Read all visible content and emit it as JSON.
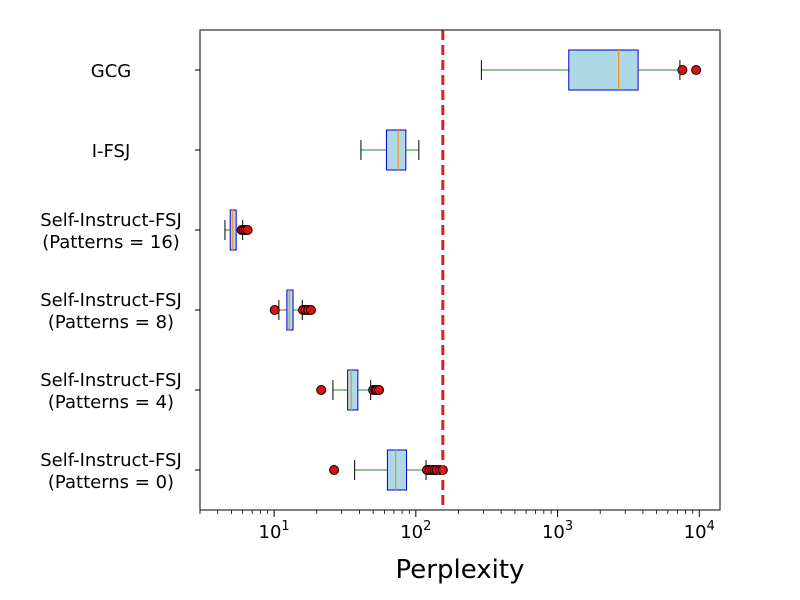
{
  "chart_data": {
    "type": "boxplot",
    "orientation": "horizontal",
    "xscale": "log",
    "xlim": [
      3,
      14000
    ],
    "xlabel": "Perplexity",
    "ylabel": "",
    "title": "",
    "x_ticks": [
      {
        "value": 10,
        "base": "10",
        "exp": "1"
      },
      {
        "value": 100,
        "base": "10",
        "exp": "2"
      },
      {
        "value": 1000,
        "base": "10",
        "exp": "3"
      },
      {
        "value": 10000,
        "base": "10",
        "exp": "4"
      }
    ],
    "threshold": {
      "value": 155,
      "color": "#dd2222",
      "style": "dashed"
    },
    "colors": {
      "box_fill": "#add8e6",
      "box_edge": "#0000cc",
      "whisker": "#228b22",
      "median": "#ff8c1a",
      "outlier": "#dd1111"
    },
    "series": [
      {
        "name": "GCG",
        "label_lines": [
          "GCG"
        ],
        "whisker_low": 290,
        "q1": 1200,
        "median": 2700,
        "q3": 3700,
        "whisker_high": 7300,
        "outliers": [
          7600,
          9500
        ]
      },
      {
        "name": "I-FSJ",
        "label_lines": [
          "I-FSJ"
        ],
        "whisker_low": 41,
        "q1": 62,
        "median": 75,
        "q3": 85,
        "whisker_high": 105,
        "outliers": []
      },
      {
        "name": "Self-Instruct-FSJ (Patterns = 16)",
        "label_lines": [
          "Self-Instruct-FSJ",
          "(Patterns = 16)"
        ],
        "whisker_low": 4.5,
        "q1": 4.9,
        "median": 5.1,
        "q3": 5.4,
        "whisker_high": 6.0,
        "outliers": [
          5.9,
          6.1,
          6.3,
          6.5
        ]
      },
      {
        "name": "Self-Instruct-FSJ (Patterns = 8)",
        "label_lines": [
          "Self-Instruct-FSJ",
          "(Patterns = 8)"
        ],
        "whisker_low": 10.8,
        "q1": 12.3,
        "median": 12.8,
        "q3": 13.6,
        "whisker_high": 15.8,
        "outliers": [
          10.1,
          16.0,
          16.7,
          17.4,
          18.2
        ]
      },
      {
        "name": "Self-Instruct-FSJ (Patterns = 4)",
        "label_lines": [
          "Self-Instruct-FSJ",
          "(Patterns = 4)"
        ],
        "whisker_low": 26,
        "q1": 33,
        "median": 35,
        "q3": 39,
        "whisker_high": 48,
        "outliers": [
          21.5,
          50,
          52,
          53,
          55
        ]
      },
      {
        "name": "Self-Instruct-FSJ (Patterns = 0)",
        "label_lines": [
          "Self-Instruct-FSJ",
          "(Patterns = 0)"
        ],
        "whisker_low": 37,
        "q1": 63,
        "median": 72,
        "q3": 86,
        "whisker_high": 118,
        "outliers": [
          26.5,
          120,
          125,
          130,
          135,
          140,
          148,
          155
        ]
      }
    ]
  }
}
